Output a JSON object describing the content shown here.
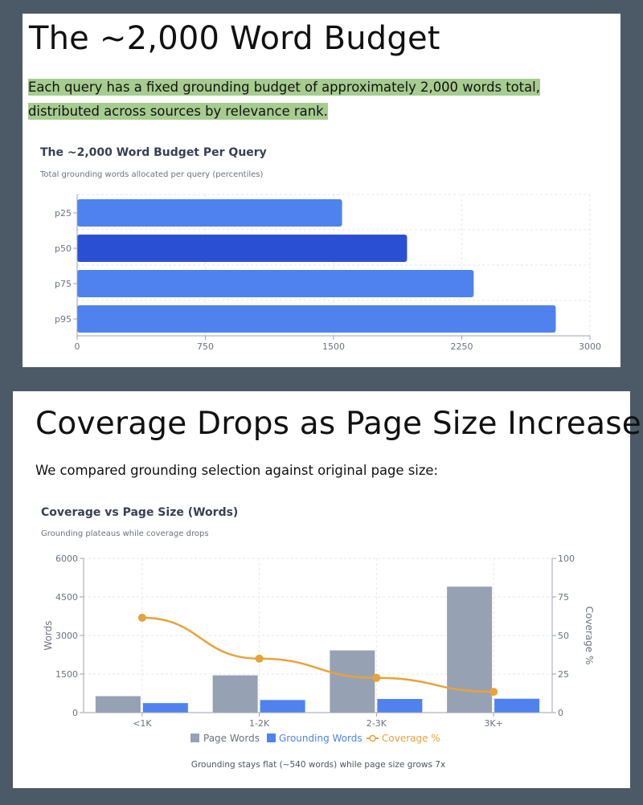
{
  "slide1": {
    "title": "The ~2,000 Word Budget",
    "text": "Each query has a fixed grounding budget of approximately 2,000 words total, distributed across sources by relevance rank."
  },
  "slide2": {
    "title": "Coverage Drops as Page Size Increases",
    "text": "We compared grounding selection against original page size:"
  },
  "chart_data": [
    {
      "type": "bar",
      "orientation": "horizontal",
      "title": "The ~2,000 Word Budget Per Query",
      "subtitle": "Total grounding words allocated per query (percentiles)",
      "categories": [
        "p25",
        "p50",
        "p75",
        "p95"
      ],
      "values": [
        1550,
        1930,
        2320,
        2800
      ],
      "highlight_index": 1,
      "xlim": [
        0,
        3000
      ],
      "xticks": [
        0,
        750,
        1500,
        2250,
        3000
      ],
      "grid": true,
      "colors": {
        "bar": "#4f82ee",
        "highlight": "#2b4fd3"
      }
    },
    {
      "type": "bar",
      "title": "Coverage vs Page Size (Words)",
      "subtitle": "Grounding plateaus while coverage drops",
      "categories": [
        "<1K",
        "1-2K",
        "2-3K",
        "3K+"
      ],
      "series": [
        {
          "name": "Page Words",
          "type": "bar",
          "axis": "left",
          "color": "#97a1b4",
          "values": [
            640,
            1450,
            2420,
            4900
          ]
        },
        {
          "name": "Grounding Words",
          "type": "bar",
          "axis": "left",
          "color": "#4f82ee",
          "values": [
            370,
            490,
            530,
            540
          ]
        },
        {
          "name": "Coverage %",
          "type": "line",
          "axis": "right",
          "color": "#e8a23a",
          "values": [
            61.5,
            35,
            22.5,
            13.5
          ]
        }
      ],
      "ylabel": "Words",
      "ylim": [
        0,
        6000
      ],
      "yticks": [
        0,
        1500,
        3000,
        4500,
        6000
      ],
      "y2label": "Coverage %",
      "y2lim": [
        0,
        100
      ],
      "y2ticks": [
        0,
        25,
        50,
        75,
        100
      ],
      "legend_position": "bottom",
      "footnote": "Grounding stays flat (~540 words) while page size grows 7x",
      "grid": true
    }
  ]
}
